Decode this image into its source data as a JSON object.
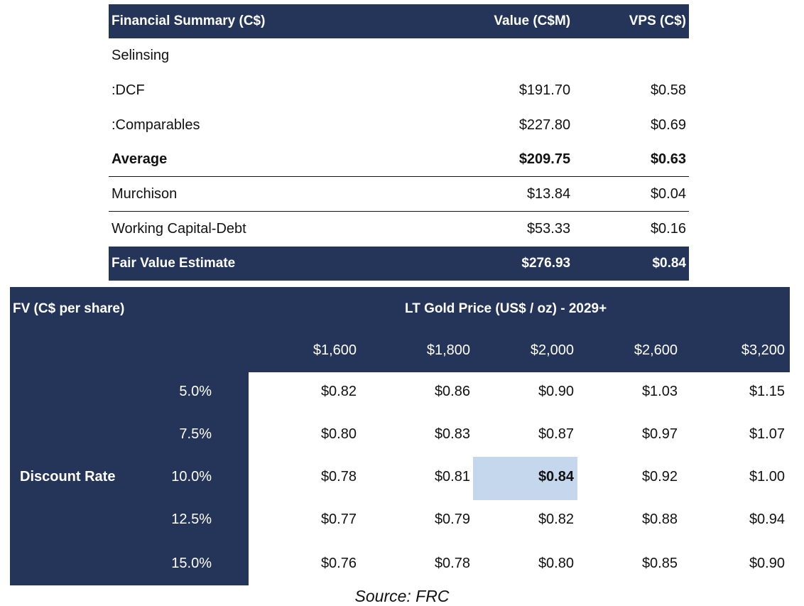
{
  "summary": {
    "headers": {
      "label": "Financial Summary (C$)",
      "value": "Value (C$M)",
      "vps": "VPS (C$)"
    },
    "rows": [
      {
        "label": "Selinsing",
        "value": "",
        "vps": ""
      },
      {
        "label": ":DCF",
        "value": "$191.70",
        "vps": "$0.58"
      },
      {
        "label": ":Comparables",
        "value": "$227.80",
        "vps": "$0.69"
      },
      {
        "label": "Average",
        "value": "$209.75",
        "vps": "$0.63"
      },
      {
        "label": "Murchison",
        "value": "$13.84",
        "vps": "$0.04"
      },
      {
        "label": "Working Capital-Debt",
        "value": "$53.33",
        "vps": "$0.16"
      }
    ],
    "total": {
      "label": "Fair Value Estimate",
      "value": "$276.93",
      "vps": "$0.84"
    }
  },
  "sensitivity": {
    "title": "FV (C$ per share)",
    "column_title": "LT Gold Price (US$ / oz) - 2029+",
    "row_title": "Discount Rate",
    "prices": [
      "$1,600",
      "$1,800",
      "$2,000",
      "$2,600",
      "$3,200"
    ],
    "rates": [
      "5.0%",
      "7.5%",
      "10.0%",
      "12.5%",
      "15.0%"
    ],
    "values": [
      [
        "$0.82",
        "$0.86",
        "$0.90",
        "$1.03",
        "$1.15"
      ],
      [
        "$0.80",
        "$0.83",
        "$0.87",
        "$0.97",
        "$1.07"
      ],
      [
        "$0.78",
        "$0.81",
        "$0.84",
        "$0.92",
        "$1.00"
      ],
      [
        "$0.77",
        "$0.79",
        "$0.82",
        "$0.88",
        "$0.94"
      ],
      [
        "$0.76",
        "$0.78",
        "$0.80",
        "$0.85",
        "$0.90"
      ]
    ],
    "base_case": {
      "row": 2,
      "col": 2
    },
    "colors": {
      "navy": "#253559",
      "highlight": "#c5d7ec"
    }
  },
  "source": "Source: FRC"
}
